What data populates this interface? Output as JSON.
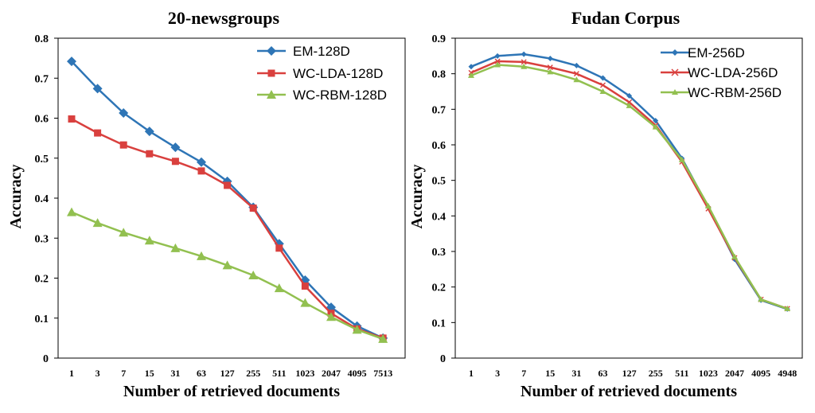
{
  "chart_data": [
    {
      "type": "line",
      "title": "20-newsgroups",
      "xlabel": "Number of retrieved documents",
      "ylabel": "Accuracy",
      "categories": [
        "1",
        "3",
        "7",
        "15",
        "31",
        "63",
        "127",
        "255",
        "511",
        "1023",
        "2047",
        "4095",
        "7513"
      ],
      "ylim": [
        0,
        0.8
      ],
      "yticks": [
        "0",
        "0.1",
        "0.2",
        "0.3",
        "0.4",
        "0.5",
        "0.6",
        "0.7",
        "0.8"
      ],
      "legend_position": "top-right",
      "series": [
        {
          "name": "EM-128D",
          "color": "#2e75b6",
          "marker": "diamond",
          "values": [
            0.742,
            0.674,
            0.613,
            0.567,
            0.527,
            0.49,
            0.442,
            0.377,
            0.286,
            0.195,
            0.127,
            0.08,
            0.05
          ]
        },
        {
          "name": "WC-LDA-128D",
          "color": "#d9403e",
          "marker": "square",
          "values": [
            0.598,
            0.563,
            0.533,
            0.511,
            0.492,
            0.468,
            0.432,
            0.375,
            0.275,
            0.18,
            0.112,
            0.073,
            0.05
          ]
        },
        {
          "name": "WC-RBM-128D",
          "color": "#92c050",
          "marker": "triangle",
          "values": [
            0.365,
            0.338,
            0.314,
            0.294,
            0.275,
            0.255,
            0.232,
            0.207,
            0.175,
            0.138,
            0.103,
            0.071,
            0.048
          ]
        }
      ]
    },
    {
      "type": "line",
      "title": "Fudan  Corpus",
      "xlabel": "Number of retrieved documents",
      "ylabel": "Accuracy",
      "categories": [
        "1",
        "3",
        "7",
        "15",
        "31",
        "63",
        "127",
        "255",
        "511",
        "1023",
        "2047",
        "4095",
        "4948"
      ],
      "ylim": [
        0,
        0.9
      ],
      "yticks": [
        "0",
        "0.1",
        "0.2",
        "0.3",
        "0.4",
        "0.5",
        "0.6",
        "0.7",
        "0.8",
        "0.9"
      ],
      "legend_position": "top-right",
      "series": [
        {
          "name": "EM-256D",
          "color": "#2e75b6",
          "marker": "small-diamond",
          "values": [
            0.82,
            0.85,
            0.855,
            0.843,
            0.823,
            0.788,
            0.738,
            0.668,
            0.562,
            0.425,
            0.278,
            0.163,
            0.138
          ]
        },
        {
          "name": "WC-LDA-256D",
          "color": "#d9403e",
          "marker": "x",
          "values": [
            0.803,
            0.835,
            0.833,
            0.818,
            0.8,
            0.768,
            0.72,
            0.655,
            0.552,
            0.42,
            0.282,
            0.165,
            0.139
          ]
        },
        {
          "name": "WC-RBM-256D",
          "color": "#92c050",
          "marker": "small-triangle",
          "values": [
            0.795,
            0.825,
            0.82,
            0.805,
            0.783,
            0.75,
            0.71,
            0.65,
            0.558,
            0.428,
            0.285,
            0.165,
            0.139
          ]
        }
      ]
    }
  ]
}
